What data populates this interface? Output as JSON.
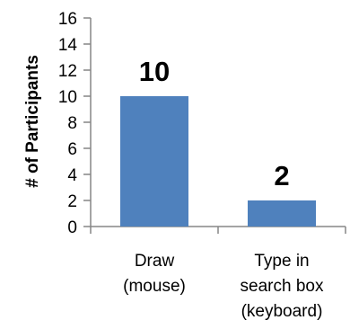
{
  "chart_data": {
    "type": "bar",
    "categories": [
      [
        "Draw",
        "(mouse)"
      ],
      [
        "Type in",
        "search box",
        "(keyboard)"
      ]
    ],
    "values": [
      10,
      2
    ],
    "data_labels": [
      "10",
      "2"
    ],
    "title": "",
    "xlabel": "",
    "ylabel": "# of Participants",
    "ylim": [
      0,
      16
    ],
    "yticks": [
      0,
      2,
      4,
      6,
      8,
      10,
      12,
      14,
      16
    ],
    "grid": false,
    "legend": "none",
    "bar_color": "#4f81bd"
  }
}
